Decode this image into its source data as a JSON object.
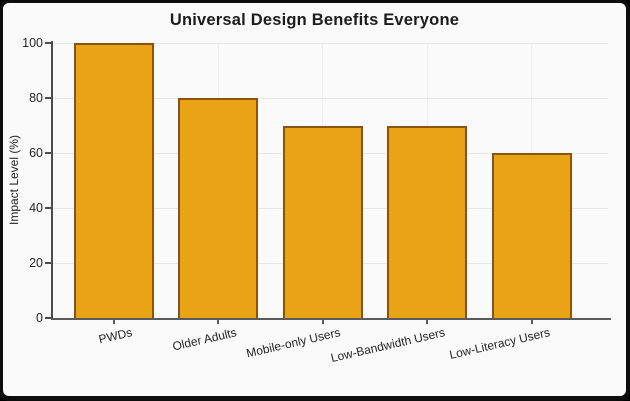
{
  "frame": {
    "border_color": "#0d0d0d",
    "background": "#fafafa"
  },
  "chart_data": {
    "type": "bar",
    "title": "Universal Design Benefits Everyone",
    "categories": [
      "PWDs",
      "Older Adults",
      "Mobile-only Users",
      "Low-Bandwidth Users",
      "Low-Literacy Users"
    ],
    "values": [
      100,
      80,
      70,
      70,
      60
    ],
    "xlabel": "",
    "ylabel": "Impact Level (%)",
    "ylim": [
      0,
      100
    ],
    "yticks": [
      0,
      20,
      40,
      60,
      80,
      100
    ],
    "grid": true,
    "legend_position": "none",
    "bar_fill": "#E9A315",
    "bar_border": "#8A530F",
    "axis_color": "#4d4d4d",
    "gridline_color": "#e7e7e7",
    "text_color": "#262626"
  }
}
